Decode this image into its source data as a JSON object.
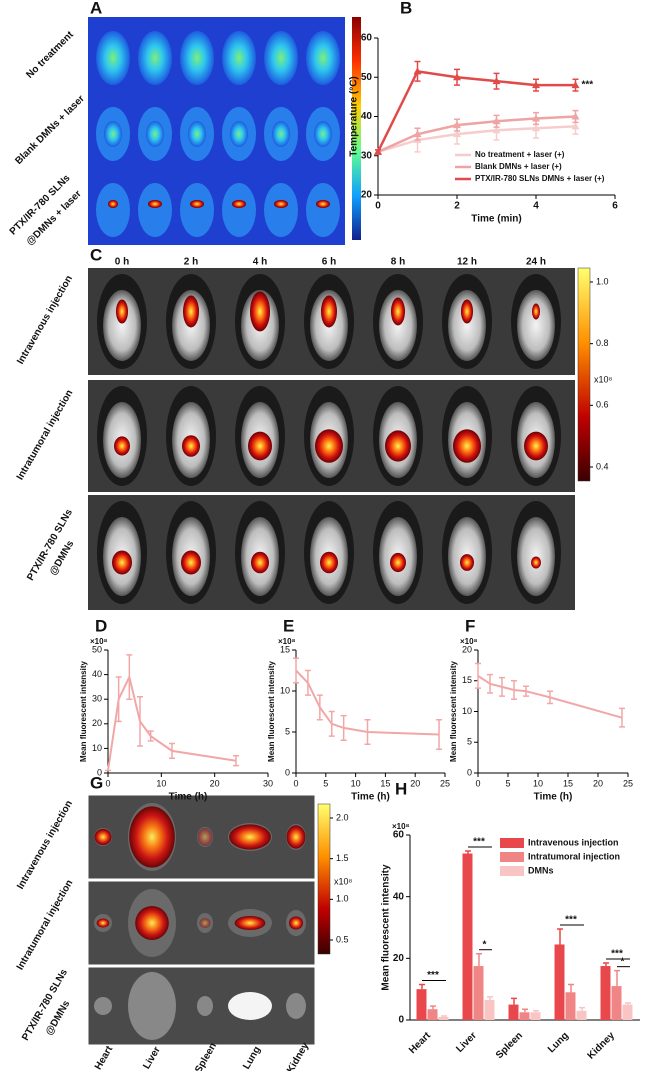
{
  "image_panels": {
    "A": {
      "label": "A",
      "rows": [
        "No treatment",
        "Blank DMNs + laser",
        "PTX/IR-780 SLNs",
        "@DMNs + laser"
      ]
    },
    "C": {
      "label": "C",
      "columns": [
        "0 h",
        "2 h",
        "4 h",
        "6 h",
        "8 h",
        "12 h",
        "24 h"
      ],
      "rows": [
        "Intravenous injection",
        "Intratumoral injection",
        "PTX/IR-780 SLNs",
        "@DMNs"
      ],
      "colorbar_ticks": [
        {
          "value": 1.0,
          "label": "1.0"
        },
        {
          "value": 0.8,
          "label": "0.8"
        },
        {
          "value": 0.6,
          "label": "0.6"
        },
        {
          "value": 0.4,
          "label": "0.4"
        }
      ],
      "colorbar_unit": "x10⁸"
    },
    "G": {
      "label": "G",
      "columns": [
        "Heart",
        "Liver",
        "Spleen",
        "Lung",
        "Kidney"
      ],
      "rows": [
        "Intravenous injection",
        "Intratumoral injection",
        "PTX/IR-780 SLNs",
        "@DMNs"
      ],
      "colorbar_ticks": [
        {
          "value": 2.0,
          "label": "2.0"
        },
        {
          "value": 1.5,
          "label": "1.5"
        },
        {
          "value": 1.0,
          "label": "1.0"
        },
        {
          "value": 0.5,
          "label": "0.5"
        }
      ],
      "colorbar_unit": "x10⁸"
    }
  },
  "chart_data": [
    {
      "type": "line",
      "panel_label": "B",
      "xlabel": "Time (min)",
      "ylabel": "Temperature (°C)",
      "x": [
        0,
        1,
        2,
        3,
        4,
        5
      ],
      "xlim": [
        0,
        6
      ],
      "xticks": [
        0,
        2,
        4,
        6
      ],
      "ylim": [
        20,
        60
      ],
      "yticks": [
        20,
        30,
        40,
        50,
        60
      ],
      "annotation": "***",
      "legend": "lower right",
      "series": [
        {
          "name": "No treatment + laser (+)",
          "color": "#f7cccc",
          "values": [
            31,
            34,
            35.5,
            36.5,
            37,
            37.5
          ],
          "errors": [
            0.5,
            3,
            2.5,
            2.5,
            2.5,
            2
          ]
        },
        {
          "name": "Blank DMNs + laser (+)",
          "color": "#f0a3a3",
          "values": [
            31,
            35.5,
            37.8,
            38.8,
            39.5,
            40
          ],
          "errors": [
            0.5,
            1.5,
            1.5,
            1.5,
            1.5,
            1.5
          ]
        },
        {
          "name": "PTX/IR-780 SLNs DMNs + laser (+)",
          "color": "#e24a4a",
          "values": [
            31,
            51.5,
            50,
            49,
            48,
            48
          ],
          "errors": [
            0.5,
            2.5,
            2,
            2,
            1.5,
            1.5
          ]
        }
      ]
    },
    {
      "type": "line",
      "panel_label": "D",
      "unit": "×10⁸",
      "xlabel": "Time (h)",
      "ylabel": "Mean fluorescent intensity",
      "x": [
        0,
        2,
        4,
        6,
        8,
        12,
        24
      ],
      "xlim": [
        0,
        30
      ],
      "xticks": [
        0,
        10,
        20,
        30
      ],
      "ylim": [
        0,
        50
      ],
      "yticks": [
        0,
        10,
        20,
        30,
        40,
        50
      ],
      "series": [
        {
          "color": "#f2a7a7",
          "values": [
            1,
            30,
            39,
            21,
            15,
            9,
            5
          ],
          "errors": [
            0,
            9,
            9,
            10,
            2,
            3,
            2
          ]
        }
      ]
    },
    {
      "type": "line",
      "panel_label": "E",
      "unit": "×10⁸",
      "xlabel": "Time (h)",
      "ylabel": "Mean fluorescent intensity",
      "x": [
        0,
        2,
        4,
        6,
        8,
        12,
        24
      ],
      "xlim": [
        0,
        25
      ],
      "xticks": [
        0,
        5,
        10,
        15,
        20,
        25
      ],
      "ylim": [
        0,
        15
      ],
      "yticks": [
        0,
        5,
        10,
        15
      ],
      "series": [
        {
          "color": "#f2a7a7",
          "values": [
            12.5,
            11,
            8,
            6,
            5.5,
            5,
            4.7
          ],
          "errors": [
            1.5,
            1.5,
            1.5,
            1.5,
            1.5,
            1.5,
            1.8
          ]
        }
      ]
    },
    {
      "type": "line",
      "panel_label": "F",
      "unit": "×10⁸",
      "xlabel": "Time (h)",
      "ylabel": "Mean fluorescent intensity",
      "x": [
        0,
        2,
        4,
        6,
        8,
        12,
        24
      ],
      "xlim": [
        0,
        25
      ],
      "xticks": [
        0,
        5,
        10,
        15,
        20,
        25
      ],
      "ylim": [
        0,
        20
      ],
      "yticks": [
        0,
        5,
        10,
        15,
        20
      ],
      "series": [
        {
          "color": "#f2a7a7",
          "values": [
            15.8,
            14.5,
            14,
            13.5,
            13.3,
            12.3,
            9
          ],
          "errors": [
            2,
            1.5,
            1.5,
            1.5,
            0.8,
            1,
            1.5
          ]
        }
      ]
    },
    {
      "type": "bar",
      "panel_label": "H",
      "unit": "×10⁸",
      "ylabel": "Mean fluorescent intensity",
      "categories": [
        "Heart",
        "Liver",
        "Spleen",
        "Lung",
        "Kidney"
      ],
      "ylim": [
        0,
        60
      ],
      "yticks": [
        0,
        20,
        40,
        60
      ],
      "legend": "upper right",
      "significance": [
        "***",
        "***",
        "*",
        "***",
        "***",
        "*"
      ],
      "series": [
        {
          "name": "Intravenous injection",
          "color": "#e8474c",
          "values": [
            10,
            54,
            5,
            24.5,
            17.5
          ],
          "errors": [
            1.5,
            0.8,
            2,
            5,
            1
          ]
        },
        {
          "name": "Intratumoral injection",
          "color": "#f08585",
          "values": [
            3.5,
            17.5,
            2.5,
            9,
            11
          ],
          "errors": [
            1,
            4,
            1,
            2.5,
            5
          ]
        },
        {
          "name": "DMNs",
          "color": "#f8c4c4",
          "values": [
            1,
            6.5,
            2.5,
            3,
            5
          ],
          "errors": [
            0.3,
            1,
            0.5,
            1,
            0.5
          ]
        }
      ]
    }
  ]
}
